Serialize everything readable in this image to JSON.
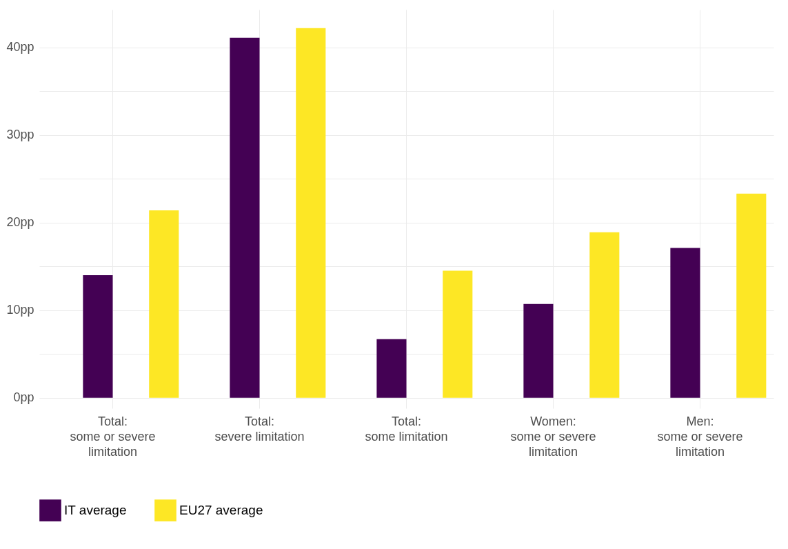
{
  "chart_data": {
    "type": "bar",
    "categories": [
      "Total:\nsome or severe\nlimitation",
      "Total:\nsevere limitation",
      "Total:\nsome limitation",
      "Women:\nsome or severe\nlimitation",
      "Men:\nsome or severe\nlimitation"
    ],
    "series": [
      {
        "name": "IT average",
        "color": "#440154",
        "values": [
          14.0,
          41.1,
          6.7,
          10.7,
          17.1
        ]
      },
      {
        "name": "EU27 average",
        "color": "#fde725",
        "values": [
          21.4,
          42.2,
          14.5,
          18.9,
          23.3
        ]
      }
    ],
    "ylim": [
      -1.2,
      44.3
    ],
    "yticks": [
      {
        "value": 0,
        "label": "0pp"
      },
      {
        "value": 5,
        "label": null
      },
      {
        "value": 10,
        "label": "10pp"
      },
      {
        "value": 15,
        "label": null
      },
      {
        "value": 20,
        "label": "20pp"
      },
      {
        "value": 25,
        "label": null
      },
      {
        "value": 30,
        "label": "30pp"
      },
      {
        "value": 35,
        "label": null
      },
      {
        "value": 40,
        "label": "40pp"
      }
    ],
    "grid": true,
    "legend": "bottom"
  }
}
